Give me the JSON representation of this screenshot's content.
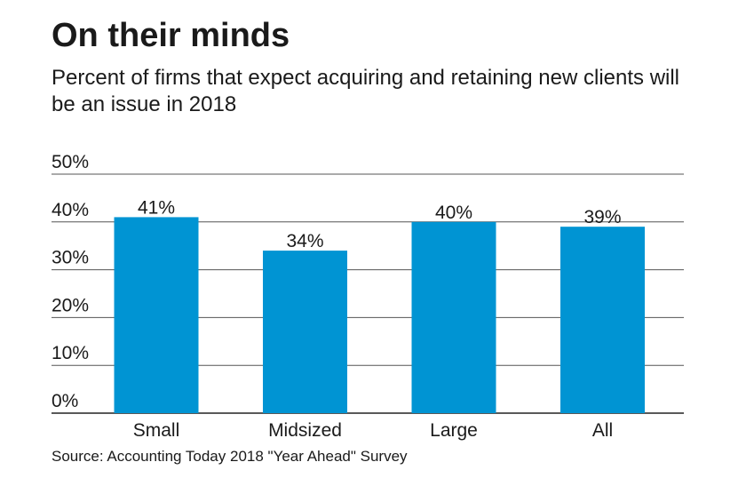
{
  "header": {
    "title": "On their minds",
    "subtitle": "Percent of firms that expect acquiring and retaining new clients will be an issue in 2018"
  },
  "footer": {
    "source": "Source: Accounting Today 2018 \"Year Ahead\" Survey"
  },
  "colors": {
    "bar": "#0094d3",
    "grid": "#555555"
  },
  "chart_data": {
    "type": "bar",
    "title": "On their minds",
    "subtitle": "Percent of firms that expect acquiring and retaining new clients will be an issue in 2018",
    "categories": [
      "Small",
      "Midsized",
      "Large",
      "All"
    ],
    "values": [
      41,
      34,
      40,
      39
    ],
    "value_labels": [
      "41%",
      "34%",
      "40%",
      "39%"
    ],
    "xlabel": "",
    "ylabel": "",
    "ylim": [
      0,
      50
    ],
    "yticks": [
      0,
      10,
      20,
      30,
      40,
      50
    ],
    "ytick_labels": [
      "0%",
      "10%",
      "20%",
      "30%",
      "40%",
      "50%"
    ],
    "grid": true,
    "legend": "none"
  }
}
